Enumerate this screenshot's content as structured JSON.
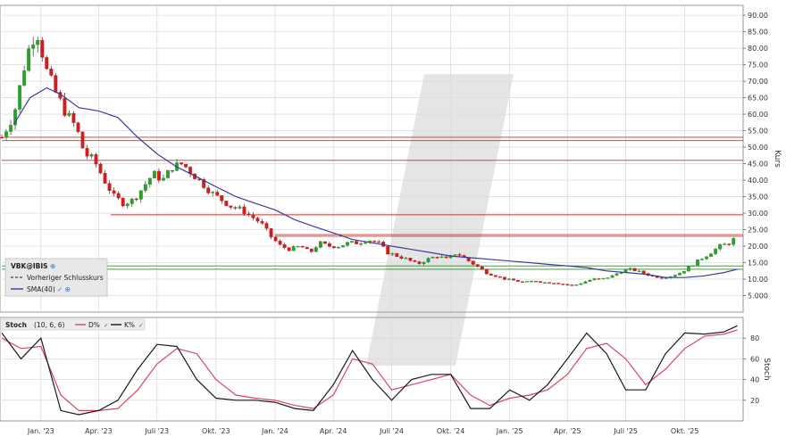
{
  "chart_data": [
    {
      "type": "candlestick",
      "ylabel": "Kurs",
      "ylim": [
        0,
        93
      ],
      "yticks": [
        5,
        10,
        15,
        20,
        25,
        30,
        35,
        40,
        45,
        50,
        55,
        60,
        65,
        70,
        75,
        80,
        85,
        90
      ],
      "ytick_labels": [
        "5.000",
        "10.00",
        "15.00",
        "20.00",
        "25.00",
        "30.00",
        "35.00",
        "40.00",
        "45.00",
        "50.00",
        "55.00",
        "60.00",
        "65.00",
        "70.00",
        "75.00",
        "80.00",
        "85.00",
        "90.00"
      ],
      "xticks": [
        "Jan. '23",
        "Apr. '23",
        "Juli '23",
        "Okt. '23",
        "Jan. '24",
        "Apr. '24",
        "Juli '24",
        "Okt. '24",
        "Jan. '25",
        "Apr. '25",
        "Juli '25",
        "Okt. '25"
      ],
      "grid": true,
      "legend": {
        "title": "VBK@IBIS",
        "items": [
          {
            "label": "Vorheriger Schlusskurs",
            "style": "dashed",
            "color": "#444444"
          },
          {
            "label": "SMA(40)",
            "style": "solid",
            "color": "#3b3b9e"
          }
        ]
      },
      "price_path": [
        [
          "2022-11-01",
          53
        ],
        [
          "2022-11-20",
          60
        ],
        [
          "2022-12-10",
          78
        ],
        [
          "2022-12-25",
          86
        ],
        [
          "2023-01-10",
          73
        ],
        [
          "2023-01-25",
          66
        ],
        [
          "2023-02-10",
          60
        ],
        [
          "2023-02-25",
          56
        ],
        [
          "2023-03-10",
          48
        ],
        [
          "2023-03-25",
          46
        ],
        [
          "2023-04-10",
          40
        ],
        [
          "2023-04-25",
          35
        ],
        [
          "2023-05-10",
          33
        ],
        [
          "2023-05-25",
          34
        ],
        [
          "2023-06-10",
          38
        ],
        [
          "2023-06-25",
          42
        ],
        [
          "2023-07-10",
          40
        ],
        [
          "2023-07-25",
          44
        ],
        [
          "2023-08-10",
          45
        ],
        [
          "2023-08-25",
          42
        ],
        [
          "2023-09-10",
          39
        ],
        [
          "2023-09-25",
          36
        ],
        [
          "2023-10-10",
          34
        ],
        [
          "2023-10-25",
          32
        ],
        [
          "2023-11-10",
          31
        ],
        [
          "2023-11-25",
          29
        ],
        [
          "2023-12-10",
          27
        ],
        [
          "2023-12-25",
          23
        ],
        [
          "2024-01-10",
          20
        ],
        [
          "2024-01-25",
          19
        ],
        [
          "2024-02-10",
          20
        ],
        [
          "2024-02-25",
          18
        ],
        [
          "2024-03-10",
          21
        ],
        [
          "2024-03-25",
          20
        ],
        [
          "2024-04-10",
          20
        ],
        [
          "2024-04-25",
          21
        ],
        [
          "2024-05-10",
          21
        ],
        [
          "2024-05-25",
          22
        ],
        [
          "2024-06-10",
          21
        ],
        [
          "2024-06-25",
          18
        ],
        [
          "2024-07-10",
          17
        ],
        [
          "2024-07-25",
          16
        ],
        [
          "2024-08-10",
          14.5
        ],
        [
          "2024-08-25",
          16
        ],
        [
          "2024-09-10",
          17
        ],
        [
          "2024-09-25",
          16
        ],
        [
          "2024-10-10",
          18
        ],
        [
          "2024-10-25",
          16
        ],
        [
          "2024-11-10",
          14
        ],
        [
          "2024-11-25",
          12
        ],
        [
          "2024-12-10",
          11
        ],
        [
          "2024-12-25",
          10
        ],
        [
          "2025-01-10",
          9.5
        ],
        [
          "2025-01-25",
          9
        ],
        [
          "2025-02-10",
          9.5
        ],
        [
          "2025-02-25",
          9
        ],
        [
          "2025-03-10",
          9
        ],
        [
          "2025-03-25",
          8.5
        ],
        [
          "2025-04-10",
          8
        ],
        [
          "2025-04-25",
          9
        ],
        [
          "2025-05-10",
          10
        ],
        [
          "2025-05-25",
          10
        ],
        [
          "2025-06-10",
          11
        ],
        [
          "2025-06-25",
          12.5
        ],
        [
          "2025-07-10",
          13
        ],
        [
          "2025-07-25",
          12
        ],
        [
          "2025-08-10",
          11
        ],
        [
          "2025-08-25",
          10.5
        ],
        [
          "2025-09-10",
          11
        ],
        [
          "2025-09-25",
          12
        ],
        [
          "2025-10-10",
          14
        ],
        [
          "2025-10-25",
          16
        ],
        [
          "2025-11-10",
          18
        ],
        [
          "2025-11-25",
          20
        ],
        [
          "2025-12-10",
          21
        ],
        [
          "2025-12-22",
          23
        ]
      ],
      "sma40": [
        [
          "2022-11-20",
          57
        ],
        [
          "2022-12-15",
          65
        ],
        [
          "2023-01-10",
          68
        ],
        [
          "2023-02-01",
          66
        ],
        [
          "2023-03-01",
          62
        ],
        [
          "2023-04-01",
          61
        ],
        [
          "2023-05-01",
          59
        ],
        [
          "2023-06-01",
          53
        ],
        [
          "2023-07-01",
          48
        ],
        [
          "2023-08-01",
          44
        ],
        [
          "2023-09-01",
          41
        ],
        [
          "2023-10-01",
          38
        ],
        [
          "2023-11-01",
          35
        ],
        [
          "2023-12-01",
          33
        ],
        [
          "2024-01-01",
          31
        ],
        [
          "2024-02-01",
          28
        ],
        [
          "2024-03-01",
          26
        ],
        [
          "2024-04-01",
          24
        ],
        [
          "2024-05-01",
          22
        ],
        [
          "2024-06-01",
          21
        ],
        [
          "2024-07-01",
          20
        ],
        [
          "2024-08-01",
          19
        ],
        [
          "2024-09-01",
          18
        ],
        [
          "2024-10-01",
          17
        ],
        [
          "2024-11-01",
          16.5
        ],
        [
          "2024-12-01",
          16
        ],
        [
          "2025-01-01",
          15.5
        ],
        [
          "2025-02-01",
          15
        ],
        [
          "2025-03-01",
          14.5
        ],
        [
          "2025-04-01",
          14
        ],
        [
          "2025-05-01",
          13.5
        ],
        [
          "2025-06-01",
          12.5
        ],
        [
          "2025-07-01",
          12
        ],
        [
          "2025-08-01",
          11.5
        ],
        [
          "2025-09-01",
          10.5
        ],
        [
          "2025-10-01",
          10.5
        ],
        [
          "2025-11-01",
          11
        ],
        [
          "2025-12-01",
          12
        ],
        [
          "2025-12-22",
          13
        ]
      ],
      "levels": [
        {
          "value": 53,
          "color": "#c0392b",
          "start": "2022-11-01"
        },
        {
          "value": 52,
          "color": "#c0392b",
          "start": "2022-11-01"
        },
        {
          "value": 46,
          "color": "#c0392b",
          "start": "2022-11-01"
        },
        {
          "value": 29.5,
          "color": "#c0392b",
          "start": "2023-04-20"
        },
        {
          "value": 23.5,
          "color": "#c0392b",
          "start": "2024-01-01"
        },
        {
          "value": 23,
          "color": "#c0392b",
          "start": "2024-01-01"
        },
        {
          "value": 14,
          "color": "#2e8b2e",
          "start": "2022-11-01"
        },
        {
          "value": 13,
          "color": "#2e8b2e",
          "start": "2022-11-01"
        }
      ]
    },
    {
      "type": "line",
      "title": "Stoch",
      "params": "(10, 6, 6)",
      "ylabel": "Stoch",
      "ylim": [
        0,
        100
      ],
      "yticks": [
        20,
        40,
        60,
        80
      ],
      "ytick_labels": [
        "20",
        "40",
        "60",
        "80"
      ],
      "grid": true,
      "series": [
        {
          "name": "D%",
          "color": "#d9455f",
          "values": [
            [
              "2022-11-01",
              80
            ],
            [
              "2022-12-01",
              70
            ],
            [
              "2023-01-01",
              72
            ],
            [
              "2023-02-01",
              25
            ],
            [
              "2023-03-01",
              10
            ],
            [
              "2023-04-01",
              10
            ],
            [
              "2023-05-01",
              12
            ],
            [
              "2023-06-01",
              30
            ],
            [
              "2023-07-01",
              55
            ],
            [
              "2023-08-01",
              70
            ],
            [
              "2023-09-01",
              65
            ],
            [
              "2023-10-01",
              40
            ],
            [
              "2023-11-01",
              25
            ],
            [
              "2023-12-01",
              22
            ],
            [
              "2024-01-01",
              20
            ],
            [
              "2024-02-01",
              15
            ],
            [
              "2024-03-01",
              12
            ],
            [
              "2024-04-01",
              25
            ],
            [
              "2024-05-01",
              60
            ],
            [
              "2024-06-01",
              55
            ],
            [
              "2024-07-01",
              30
            ],
            [
              "2024-08-01",
              35
            ],
            [
              "2024-09-01",
              40
            ],
            [
              "2024-10-01",
              45
            ],
            [
              "2024-11-01",
              25
            ],
            [
              "2024-12-01",
              15
            ],
            [
              "2025-01-01",
              22
            ],
            [
              "2025-02-01",
              25
            ],
            [
              "2025-03-01",
              30
            ],
            [
              "2025-04-01",
              45
            ],
            [
              "2025-05-01",
              70
            ],
            [
              "2025-06-01",
              75
            ],
            [
              "2025-07-01",
              60
            ],
            [
              "2025-08-01",
              35
            ],
            [
              "2025-09-01",
              50
            ],
            [
              "2025-10-01",
              70
            ],
            [
              "2025-11-01",
              82
            ],
            [
              "2025-12-01",
              84
            ],
            [
              "2025-12-22",
              88
            ]
          ]
        },
        {
          "name": "K%",
          "color": "#1a1a1a",
          "values": [
            [
              "2022-11-01",
              85
            ],
            [
              "2022-12-01",
              60
            ],
            [
              "2023-01-01",
              80
            ],
            [
              "2023-02-01",
              10
            ],
            [
              "2023-03-01",
              6
            ],
            [
              "2023-04-01",
              10
            ],
            [
              "2023-05-01",
              20
            ],
            [
              "2023-06-01",
              50
            ],
            [
              "2023-07-01",
              74
            ],
            [
              "2023-08-01",
              72
            ],
            [
              "2023-09-01",
              40
            ],
            [
              "2023-10-01",
              22
            ],
            [
              "2023-11-01",
              20
            ],
            [
              "2023-12-01",
              20
            ],
            [
              "2024-01-01",
              18
            ],
            [
              "2024-02-01",
              12
            ],
            [
              "2024-03-01",
              10
            ],
            [
              "2024-04-01",
              35
            ],
            [
              "2024-05-01",
              68
            ],
            [
              "2024-06-01",
              40
            ],
            [
              "2024-07-01",
              20
            ],
            [
              "2024-08-01",
              40
            ],
            [
              "2024-09-01",
              45
            ],
            [
              "2024-10-01",
              45
            ],
            [
              "2024-11-01",
              12
            ],
            [
              "2024-12-01",
              12
            ],
            [
              "2025-01-01",
              30
            ],
            [
              "2025-02-01",
              20
            ],
            [
              "2025-03-01",
              35
            ],
            [
              "2025-04-01",
              60
            ],
            [
              "2025-05-01",
              85
            ],
            [
              "2025-06-01",
              65
            ],
            [
              "2025-07-01",
              30
            ],
            [
              "2025-08-01",
              30
            ],
            [
              "2025-09-01",
              65
            ],
            [
              "2025-10-01",
              85
            ],
            [
              "2025-11-01",
              84
            ],
            [
              "2025-12-01",
              86
            ],
            [
              "2025-12-22",
              92
            ]
          ]
        }
      ]
    }
  ],
  "colors": {
    "up_candle": "#2e9e2e",
    "down_candle": "#cc1f1f",
    "grid": "#dcdcdc",
    "sma": "#3b3b9e",
    "watermark": "#d4d4d4"
  }
}
